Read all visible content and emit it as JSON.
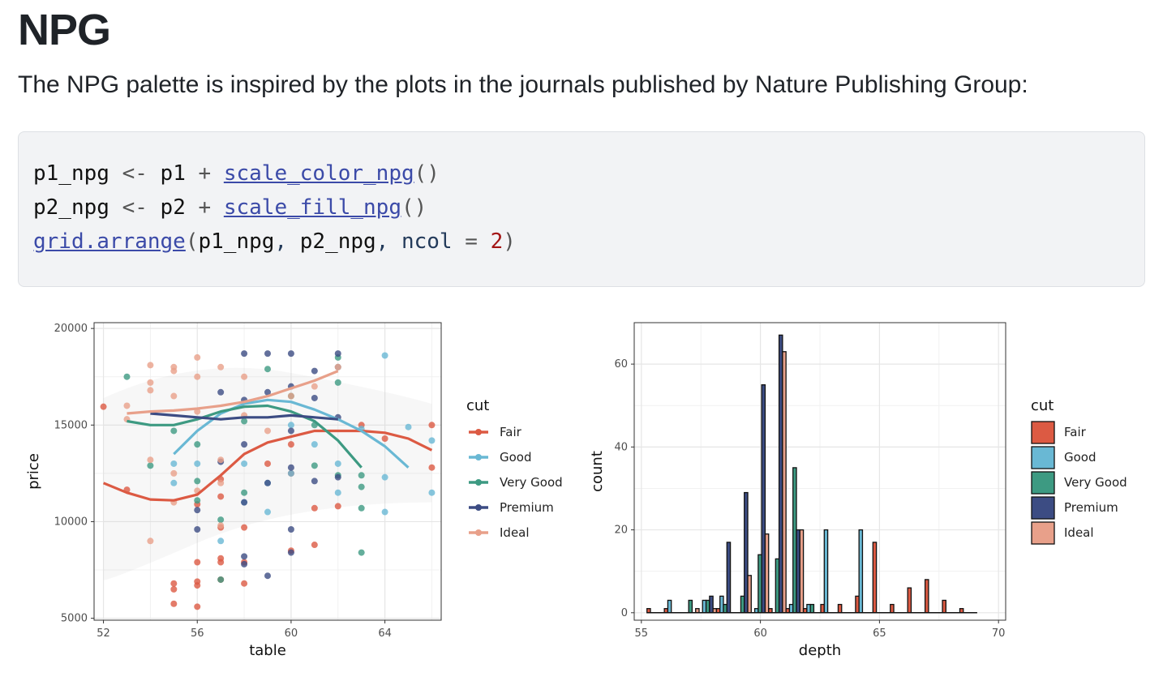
{
  "page": {
    "title": "NPG",
    "intro": "The NPG palette is inspired by the plots in the journals published by Nature Publishing Group:"
  },
  "code": {
    "line1": {
      "var": "p1_npg",
      "assign": " <- ",
      "base": "p1",
      "plus": " + ",
      "fn": "scale_color_npg",
      "paren": "()"
    },
    "line2": {
      "var": "p2_npg",
      "assign": " <- ",
      "base": "p2",
      "plus": " + ",
      "fn": "scale_fill_npg",
      "paren": "()"
    },
    "line3": {
      "fn": "grid.arrange",
      "open": "(",
      "arg1": "p1_npg",
      "comma1": ", ",
      "arg2": "p2_npg",
      "comma2": ", ",
      "param": "ncol",
      "eq": " = ",
      "val": "2",
      "close": ")"
    }
  },
  "colors": {
    "Fair": "#dc5a43",
    "Good": "#69b8d4",
    "Very Good": "#3d9a82",
    "Premium": "#3c4c83",
    "Ideal": "#e8a08a"
  },
  "chart_data": [
    {
      "type": "scatter",
      "xlabel": "table",
      "ylabel": "price",
      "xlim": [
        51.6,
        66.4
      ],
      "ylim": [
        4900,
        20300
      ],
      "xticks": [
        52,
        56,
        60,
        64
      ],
      "yticks": [
        5000,
        10000,
        15000,
        20000
      ],
      "legend": {
        "title": "cut",
        "position": "right",
        "entries": [
          "Fair",
          "Good",
          "Very Good",
          "Premium",
          "Ideal"
        ]
      },
      "series": [
        {
          "name": "Fair",
          "points": [
            [
              52,
              15950
            ],
            [
              53,
              11650
            ],
            [
              55,
              6800
            ],
            [
              55,
              6500
            ],
            [
              55,
              5750
            ],
            [
              56,
              5600
            ],
            [
              56,
              6900
            ],
            [
              56,
              7900
            ],
            [
              56,
              6700
            ],
            [
              56,
              10900
            ],
            [
              57,
              7000
            ],
            [
              57,
              7900
            ],
            [
              57,
              8100
            ],
            [
              57,
              9700
            ],
            [
              57,
              11300
            ],
            [
              57,
              12200
            ],
            [
              58,
              6800
            ],
            [
              58,
              7900
            ],
            [
              58,
              9700
            ],
            [
              59,
              13000
            ],
            [
              60,
              14000
            ],
            [
              60,
              12500
            ],
            [
              60,
              8500
            ],
            [
              61,
              8800
            ],
            [
              61,
              10700
            ],
            [
              62,
              10800
            ],
            [
              62,
              18000
            ],
            [
              63,
              15000
            ],
            [
              64,
              14300
            ],
            [
              66,
              15000
            ],
            [
              66,
              12800
            ]
          ],
          "smooth": [
            [
              52,
              12000
            ],
            [
              53,
              11500
            ],
            [
              54,
              11150
            ],
            [
              55,
              11100
            ],
            [
              56,
              11400
            ],
            [
              57,
              12400
            ],
            [
              58,
              13500
            ],
            [
              59,
              14100
            ],
            [
              60,
              14400
            ],
            [
              61,
              14700
            ],
            [
              62,
              14700
            ],
            [
              63,
              14700
            ],
            [
              64,
              14600
            ],
            [
              65,
              14300
            ],
            [
              66,
              13700
            ]
          ]
        },
        {
          "name": "Good",
          "points": [
            [
              55,
              13000
            ],
            [
              55,
              12000
            ],
            [
              56,
              13000
            ],
            [
              57,
              9000
            ],
            [
              58,
              11000
            ],
            [
              58,
              13000
            ],
            [
              59,
              10500
            ],
            [
              59,
              12000
            ],
            [
              60,
              12500
            ],
            [
              60,
              15000
            ],
            [
              61,
              14000
            ],
            [
              62,
              11500
            ],
            [
              62,
              13000
            ],
            [
              62,
              18000
            ],
            [
              63,
              14800
            ],
            [
              64,
              10500
            ],
            [
              64,
              12300
            ],
            [
              64,
              18600
            ],
            [
              65,
              14900
            ],
            [
              66,
              11500
            ],
            [
              66,
              14200
            ]
          ],
          "smooth": [
            [
              55,
              13500
            ],
            [
              56,
              14700
            ],
            [
              57,
              15600
            ],
            [
              58,
              16100
            ],
            [
              59,
              16300
            ],
            [
              60,
              16200
            ],
            [
              61,
              15800
            ],
            [
              62,
              15300
            ],
            [
              63,
              14700
            ],
            [
              64,
              13900
            ],
            [
              65,
              12800
            ]
          ]
        },
        {
          "name": "Very Good",
          "points": [
            [
              53,
              17500
            ],
            [
              54,
              12900
            ],
            [
              55,
              14700
            ],
            [
              56,
              14000
            ],
            [
              56,
              12100
            ],
            [
              56,
              11100
            ],
            [
              57,
              10100
            ],
            [
              57,
              7000
            ],
            [
              58,
              11500
            ],
            [
              58,
              15200
            ],
            [
              59,
              17900
            ],
            [
              60,
              16500
            ],
            [
              61,
              15000
            ],
            [
              61,
              12900
            ],
            [
              62,
              12400
            ],
            [
              62,
              17200
            ],
            [
              62,
              18500
            ],
            [
              63,
              10700
            ],
            [
              63,
              12400
            ],
            [
              63,
              11800
            ],
            [
              63,
              8400
            ]
          ],
          "smooth": [
            [
              53,
              15200
            ],
            [
              54,
              15000
            ],
            [
              55,
              15000
            ],
            [
              56,
              15300
            ],
            [
              57,
              15700
            ],
            [
              58,
              15950
            ],
            [
              59,
              16000
            ],
            [
              60,
              15700
            ],
            [
              61,
              15200
            ],
            [
              62,
              14200
            ],
            [
              63,
              12800
            ]
          ]
        },
        {
          "name": "Premium",
          "points": [
            [
              56,
              9600
            ],
            [
              56,
              10600
            ],
            [
              57,
              13100
            ],
            [
              57,
              16700
            ],
            [
              58,
              8200
            ],
            [
              58,
              7800
            ],
            [
              58,
              11000
            ],
            [
              58,
              14000
            ],
            [
              58,
              16300
            ],
            [
              58,
              18700
            ],
            [
              59,
              7200
            ],
            [
              59,
              12000
            ],
            [
              59,
              16700
            ],
            [
              59,
              18700
            ],
            [
              60,
              8400
            ],
            [
              60,
              9600
            ],
            [
              60,
              12800
            ],
            [
              60,
              14700
            ],
            [
              60,
              17000
            ],
            [
              60,
              18700
            ],
            [
              61,
              12100
            ],
            [
              61,
              16400
            ],
            [
              61,
              17800
            ],
            [
              62,
              12300
            ],
            [
              62,
              15400
            ],
            [
              62,
              18700
            ]
          ],
          "smooth": [
            [
              54,
              15600
            ],
            [
              55,
              15500
            ],
            [
              56,
              15400
            ],
            [
              57,
              15300
            ],
            [
              58,
              15400
            ],
            [
              59,
              15400
            ],
            [
              60,
              15500
            ],
            [
              61,
              15400
            ],
            [
              62,
              15300
            ]
          ]
        },
        {
          "name": "Ideal",
          "points": [
            [
              53,
              16000
            ],
            [
              53,
              15300
            ],
            [
              54,
              18100
            ],
            [
              54,
              17200
            ],
            [
              54,
              16800
            ],
            [
              54,
              13200
            ],
            [
              54,
              9000
            ],
            [
              55,
              17800
            ],
            [
              55,
              18000
            ],
            [
              55,
              16500
            ],
            [
              55,
              12500
            ],
            [
              55,
              11000
            ],
            [
              56,
              18500
            ],
            [
              56,
              17500
            ],
            [
              56,
              15700
            ],
            [
              56,
              11600
            ],
            [
              57,
              18000
            ],
            [
              57,
              12000
            ],
            [
              57,
              13200
            ],
            [
              57,
              9800
            ],
            [
              58,
              17500
            ],
            [
              58,
              15500
            ],
            [
              59,
              14700
            ],
            [
              60,
              16500
            ],
            [
              61,
              17000
            ],
            [
              62,
              18000
            ]
          ],
          "smooth": [
            [
              53,
              15600
            ],
            [
              54,
              15700
            ],
            [
              55,
              15750
            ],
            [
              56,
              15850
            ],
            [
              57,
              16000
            ],
            [
              58,
              16200
            ],
            [
              59,
              16500
            ],
            [
              60,
              16900
            ],
            [
              61,
              17300
            ],
            [
              62,
              17800
            ]
          ]
        }
      ]
    },
    {
      "type": "bar",
      "xlabel": "depth",
      "ylabel": "count",
      "xlim": [
        54.7,
        70.3
      ],
      "ylim": [
        -1.8,
        70
      ],
      "xticks": [
        55,
        60,
        65,
        70
      ],
      "yticks": [
        0,
        20,
        40,
        60
      ],
      "bin_width": 0.73,
      "bin_centers": [
        55.6,
        56.33,
        57.06,
        57.79,
        58.52,
        59.25,
        59.98,
        60.71,
        61.44,
        62.17,
        62.9,
        63.63,
        64.36,
        65.09,
        65.82,
        66.55,
        67.28,
        68.01,
        68.74
      ],
      "legend": {
        "title": "cut",
        "position": "right",
        "entries": [
          "Fair",
          "Good",
          "Very Good",
          "Premium",
          "Ideal"
        ]
      },
      "series": [
        {
          "name": "Fair",
          "values": [
            1,
            1,
            0,
            0,
            1,
            0,
            0,
            1,
            1,
            1,
            2,
            2,
            4,
            17,
            2,
            6,
            8,
            3,
            1
          ]
        },
        {
          "name": "Good",
          "values": [
            0,
            3,
            0,
            3,
            4,
            0,
            1,
            0,
            2,
            2,
            20,
            0,
            20,
            0,
            0,
            0,
            0,
            0,
            0
          ]
        },
        {
          "name": "Very Good",
          "values": [
            0,
            0,
            3,
            3,
            2,
            4,
            14,
            13,
            35,
            2,
            0,
            0,
            0,
            0,
            0,
            0,
            0,
            0,
            0
          ]
        },
        {
          "name": "Premium",
          "values": [
            0,
            0,
            0,
            4,
            17,
            29,
            55,
            67,
            20,
            0,
            0,
            0,
            0,
            0,
            0,
            0,
            0,
            0,
            0
          ]
        },
        {
          "name": "Ideal",
          "values": [
            0,
            0,
            1,
            1,
            0,
            9,
            19,
            63,
            20,
            0,
            0,
            0,
            0,
            0,
            0,
            0,
            0,
            0,
            0
          ]
        }
      ]
    }
  ]
}
